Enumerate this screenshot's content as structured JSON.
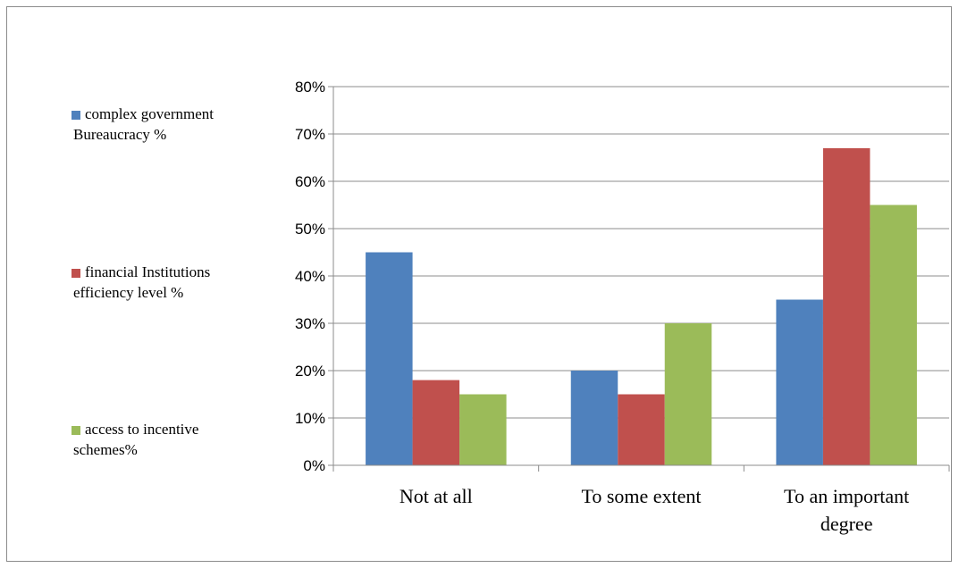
{
  "chart_data": {
    "type": "bar",
    "categories": [
      "Not at all",
      "To some extent",
      "To an important degree"
    ],
    "category_label_lines": [
      [
        "Not at all"
      ],
      [
        "To some extent"
      ],
      [
        "To an important",
        "degree"
      ]
    ],
    "series": [
      {
        "name": "complex government Bureaucracy  %",
        "legend_lines": [
          "complex government",
          "Bureaucracy  %"
        ],
        "color": "#4f81bd",
        "values": [
          45,
          20,
          35
        ]
      },
      {
        "name": "financial Institutions efficiency level %",
        "legend_lines": [
          "financial Institutions",
          "efficiency level %"
        ],
        "color": "#c0504d",
        "values": [
          18,
          15,
          67
        ]
      },
      {
        "name": "access  to incentive schemes%",
        "legend_lines": [
          "access  to incentive",
          "schemes%"
        ],
        "color": "#9bbb59",
        "values": [
          15,
          30,
          55
        ]
      }
    ],
    "yticks": [
      "0%",
      "10%",
      "20%",
      "30%",
      "40%",
      "50%",
      "60%",
      "70%",
      "80%"
    ],
    "ylim": [
      0,
      80
    ],
    "grid": true,
    "legend_position": "left",
    "title": "",
    "xlabel": "",
    "ylabel": ""
  }
}
